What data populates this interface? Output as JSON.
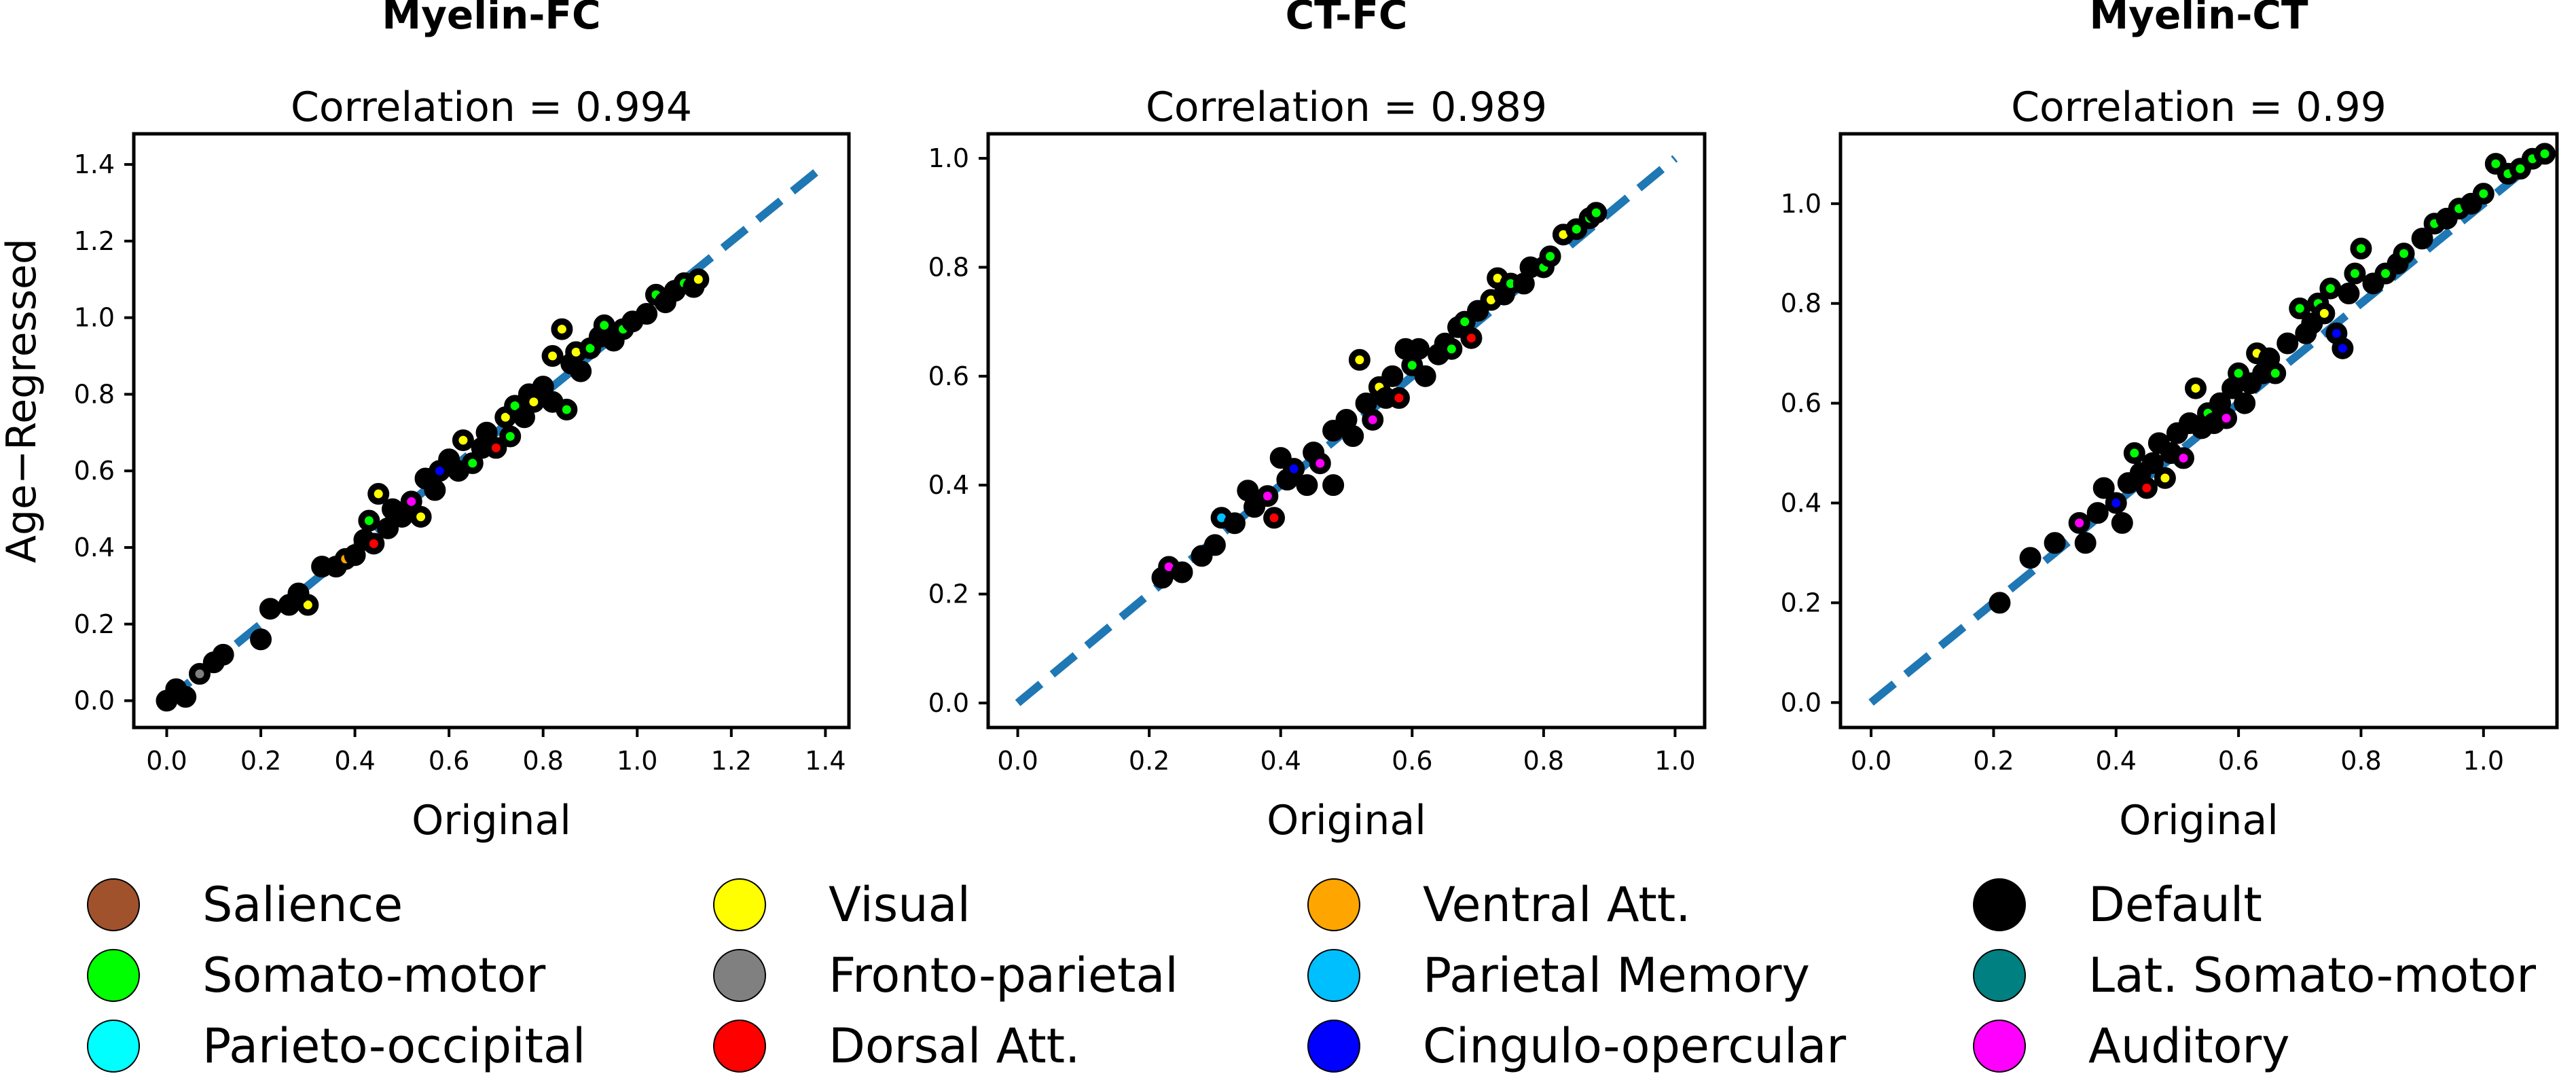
{
  "ylabel_shared": "Age−Regressed",
  "chart_data": [
    {
      "type": "scatter",
      "title": "Myelin-FC",
      "subtitle": "Correlation = 0.994",
      "xlabel": "Original",
      "ylabel": "Age−Regressed",
      "xlim": [
        -0.07,
        1.45
      ],
      "ylim": [
        -0.07,
        1.48
      ],
      "xticks": [
        "0.0",
        "0.2",
        "0.4",
        "0.6",
        "0.8",
        "1.0",
        "1.2",
        "1.4"
      ],
      "yticks": [
        "0.0",
        "0.2",
        "0.4",
        "0.6",
        "0.8",
        "1.0",
        "1.2",
        "1.4"
      ],
      "reference_line": {
        "from": [
          0,
          0
        ],
        "to": [
          1.4,
          1.4
        ],
        "style": "dashed",
        "color": "#1f77b4"
      },
      "points": [
        {
          "x": 0.0,
          "y": 0.0,
          "c": "Default"
        },
        {
          "x": 0.02,
          "y": 0.03,
          "c": "Default"
        },
        {
          "x": 0.04,
          "y": 0.01,
          "c": "Default"
        },
        {
          "x": 0.07,
          "y": 0.07,
          "c": "Fronto-parietal"
        },
        {
          "x": 0.1,
          "y": 0.1,
          "c": "Default"
        },
        {
          "x": 0.12,
          "y": 0.12,
          "c": "Default"
        },
        {
          "x": 0.2,
          "y": 0.16,
          "c": "Default"
        },
        {
          "x": 0.22,
          "y": 0.24,
          "c": "Default"
        },
        {
          "x": 0.26,
          "y": 0.25,
          "c": "Default"
        },
        {
          "x": 0.3,
          "y": 0.25,
          "c": "Visual"
        },
        {
          "x": 0.28,
          "y": 0.28,
          "c": "Default"
        },
        {
          "x": 0.33,
          "y": 0.35,
          "c": "Default"
        },
        {
          "x": 0.36,
          "y": 0.35,
          "c": "Default"
        },
        {
          "x": 0.38,
          "y": 0.37,
          "c": "Ventral Att."
        },
        {
          "x": 0.4,
          "y": 0.38,
          "c": "Default"
        },
        {
          "x": 0.42,
          "y": 0.42,
          "c": "Default"
        },
        {
          "x": 0.44,
          "y": 0.41,
          "c": "Dorsal Att."
        },
        {
          "x": 0.43,
          "y": 0.47,
          "c": "Somato-motor"
        },
        {
          "x": 0.45,
          "y": 0.54,
          "c": "Visual"
        },
        {
          "x": 0.47,
          "y": 0.45,
          "c": "Default"
        },
        {
          "x": 0.48,
          "y": 0.5,
          "c": "Default"
        },
        {
          "x": 0.5,
          "y": 0.48,
          "c": "Default"
        },
        {
          "x": 0.52,
          "y": 0.52,
          "c": "Auditory"
        },
        {
          "x": 0.54,
          "y": 0.48,
          "c": "Visual"
        },
        {
          "x": 0.55,
          "y": 0.58,
          "c": "Default"
        },
        {
          "x": 0.57,
          "y": 0.55,
          "c": "Default"
        },
        {
          "x": 0.58,
          "y": 0.6,
          "c": "Cingulo-opercular"
        },
        {
          "x": 0.6,
          "y": 0.63,
          "c": "Default"
        },
        {
          "x": 0.62,
          "y": 0.6,
          "c": "Default"
        },
        {
          "x": 0.63,
          "y": 0.68,
          "c": "Visual"
        },
        {
          "x": 0.65,
          "y": 0.62,
          "c": "Somato-motor"
        },
        {
          "x": 0.67,
          "y": 0.66,
          "c": "Default"
        },
        {
          "x": 0.68,
          "y": 0.7,
          "c": "Default"
        },
        {
          "x": 0.7,
          "y": 0.66,
          "c": "Dorsal Att."
        },
        {
          "x": 0.72,
          "y": 0.74,
          "c": "Visual"
        },
        {
          "x": 0.73,
          "y": 0.69,
          "c": "Somato-motor"
        },
        {
          "x": 0.74,
          "y": 0.77,
          "c": "Somato-motor"
        },
        {
          "x": 0.76,
          "y": 0.74,
          "c": "Default"
        },
        {
          "x": 0.77,
          "y": 0.8,
          "c": "Default"
        },
        {
          "x": 0.78,
          "y": 0.78,
          "c": "Visual"
        },
        {
          "x": 0.8,
          "y": 0.82,
          "c": "Default"
        },
        {
          "x": 0.82,
          "y": 0.78,
          "c": "Default"
        },
        {
          "x": 0.82,
          "y": 0.9,
          "c": "Visual"
        },
        {
          "x": 0.84,
          "y": 0.97,
          "c": "Visual"
        },
        {
          "x": 0.85,
          "y": 0.76,
          "c": "Somato-motor"
        },
        {
          "x": 0.86,
          "y": 0.88,
          "c": "Default"
        },
        {
          "x": 0.87,
          "y": 0.91,
          "c": "Visual"
        },
        {
          "x": 0.88,
          "y": 0.86,
          "c": "Default"
        },
        {
          "x": 0.9,
          "y": 0.92,
          "c": "Somato-motor"
        },
        {
          "x": 0.92,
          "y": 0.95,
          "c": "Default"
        },
        {
          "x": 0.93,
          "y": 0.98,
          "c": "Somato-motor"
        },
        {
          "x": 0.95,
          "y": 0.94,
          "c": "Default"
        },
        {
          "x": 0.97,
          "y": 0.97,
          "c": "Somato-motor"
        },
        {
          "x": 0.99,
          "y": 0.99,
          "c": "Default"
        },
        {
          "x": 1.02,
          "y": 1.01,
          "c": "Default"
        },
        {
          "x": 1.04,
          "y": 1.06,
          "c": "Somato-motor"
        },
        {
          "x": 1.06,
          "y": 1.04,
          "c": "Default"
        },
        {
          "x": 1.08,
          "y": 1.07,
          "c": "Default"
        },
        {
          "x": 1.1,
          "y": 1.09,
          "c": "Somato-motor"
        },
        {
          "x": 1.12,
          "y": 1.08,
          "c": "Default"
        },
        {
          "x": 1.13,
          "y": 1.1,
          "c": "Visual"
        }
      ]
    },
    {
      "type": "scatter",
      "title": "CT-FC",
      "subtitle": "Correlation = 0.989",
      "xlabel": "Original",
      "ylabel": "",
      "xlim": [
        -0.045,
        1.045
      ],
      "ylim": [
        -0.045,
        1.045
      ],
      "xticks": [
        "0.0",
        "0.2",
        "0.4",
        "0.6",
        "0.8",
        "1.0"
      ],
      "yticks": [
        "0.0",
        "0.2",
        "0.4",
        "0.6",
        "0.8",
        "1.0"
      ],
      "reference_line": {
        "from": [
          0,
          0
        ],
        "to": [
          1.0,
          1.0
        ],
        "style": "dashed",
        "color": "#1f77b4"
      },
      "points": [
        {
          "x": 0.22,
          "y": 0.23,
          "c": "Default"
        },
        {
          "x": 0.23,
          "y": 0.25,
          "c": "Auditory"
        },
        {
          "x": 0.25,
          "y": 0.24,
          "c": "Default"
        },
        {
          "x": 0.28,
          "y": 0.27,
          "c": "Default"
        },
        {
          "x": 0.3,
          "y": 0.29,
          "c": "Default"
        },
        {
          "x": 0.31,
          "y": 0.34,
          "c": "Parietal Memory"
        },
        {
          "x": 0.33,
          "y": 0.33,
          "c": "Default"
        },
        {
          "x": 0.35,
          "y": 0.39,
          "c": "Default"
        },
        {
          "x": 0.36,
          "y": 0.36,
          "c": "Default"
        },
        {
          "x": 0.38,
          "y": 0.38,
          "c": "Auditory"
        },
        {
          "x": 0.39,
          "y": 0.34,
          "c": "Dorsal Att."
        },
        {
          "x": 0.4,
          "y": 0.45,
          "c": "Default"
        },
        {
          "x": 0.41,
          "y": 0.41,
          "c": "Default"
        },
        {
          "x": 0.42,
          "y": 0.43,
          "c": "Cingulo-opercular"
        },
        {
          "x": 0.44,
          "y": 0.4,
          "c": "Default"
        },
        {
          "x": 0.45,
          "y": 0.46,
          "c": "Default"
        },
        {
          "x": 0.46,
          "y": 0.44,
          "c": "Auditory"
        },
        {
          "x": 0.48,
          "y": 0.5,
          "c": "Default"
        },
        {
          "x": 0.48,
          "y": 0.4,
          "c": "Default"
        },
        {
          "x": 0.5,
          "y": 0.52,
          "c": "Default"
        },
        {
          "x": 0.51,
          "y": 0.49,
          "c": "Default"
        },
        {
          "x": 0.52,
          "y": 0.63,
          "c": "Visual"
        },
        {
          "x": 0.53,
          "y": 0.55,
          "c": "Default"
        },
        {
          "x": 0.54,
          "y": 0.52,
          "c": "Auditory"
        },
        {
          "x": 0.55,
          "y": 0.58,
          "c": "Visual"
        },
        {
          "x": 0.56,
          "y": 0.56,
          "c": "Default"
        },
        {
          "x": 0.57,
          "y": 0.6,
          "c": "Default"
        },
        {
          "x": 0.58,
          "y": 0.56,
          "c": "Dorsal Att."
        },
        {
          "x": 0.59,
          "y": 0.65,
          "c": "Default"
        },
        {
          "x": 0.6,
          "y": 0.62,
          "c": "Somato-motor"
        },
        {
          "x": 0.61,
          "y": 0.65,
          "c": "Default"
        },
        {
          "x": 0.62,
          "y": 0.6,
          "c": "Default"
        },
        {
          "x": 0.64,
          "y": 0.64,
          "c": "Default"
        },
        {
          "x": 0.65,
          "y": 0.66,
          "c": "Default"
        },
        {
          "x": 0.66,
          "y": 0.65,
          "c": "Somato-motor"
        },
        {
          "x": 0.67,
          "y": 0.69,
          "c": "Default"
        },
        {
          "x": 0.68,
          "y": 0.7,
          "c": "Somato-motor"
        },
        {
          "x": 0.69,
          "y": 0.67,
          "c": "Dorsal Att."
        },
        {
          "x": 0.7,
          "y": 0.72,
          "c": "Default"
        },
        {
          "x": 0.72,
          "y": 0.74,
          "c": "Visual"
        },
        {
          "x": 0.73,
          "y": 0.78,
          "c": "Visual"
        },
        {
          "x": 0.74,
          "y": 0.75,
          "c": "Default"
        },
        {
          "x": 0.75,
          "y": 0.77,
          "c": "Somato-motor"
        },
        {
          "x": 0.77,
          "y": 0.77,
          "c": "Default"
        },
        {
          "x": 0.78,
          "y": 0.8,
          "c": "Default"
        },
        {
          "x": 0.8,
          "y": 0.8,
          "c": "Somato-motor"
        },
        {
          "x": 0.81,
          "y": 0.82,
          "c": "Somato-motor"
        },
        {
          "x": 0.83,
          "y": 0.86,
          "c": "Visual"
        },
        {
          "x": 0.85,
          "y": 0.87,
          "c": "Somato-motor"
        },
        {
          "x": 0.87,
          "y": 0.89,
          "c": "Somato-motor"
        },
        {
          "x": 0.88,
          "y": 0.9,
          "c": "Somato-motor"
        }
      ]
    },
    {
      "type": "scatter",
      "title": "Myelin-CT",
      "subtitle": "Correlation = 0.99",
      "xlabel": "Original",
      "ylabel": "",
      "xlim": [
        -0.05,
        1.12
      ],
      "ylim": [
        -0.05,
        1.14
      ],
      "xticks": [
        "0.0",
        "0.2",
        "0.4",
        "0.6",
        "0.8",
        "1.0"
      ],
      "yticks": [
        "0.0",
        "0.2",
        "0.4",
        "0.6",
        "0.8",
        "1.0"
      ],
      "reference_line": {
        "from": [
          0,
          0
        ],
        "to": [
          1.1,
          1.1
        ],
        "style": "dashed",
        "color": "#1f77b4"
      },
      "points": [
        {
          "x": 0.21,
          "y": 0.2,
          "c": "Default"
        },
        {
          "x": 0.26,
          "y": 0.29,
          "c": "Default"
        },
        {
          "x": 0.3,
          "y": 0.32,
          "c": "Default"
        },
        {
          "x": 0.34,
          "y": 0.36,
          "c": "Auditory"
        },
        {
          "x": 0.35,
          "y": 0.32,
          "c": "Default"
        },
        {
          "x": 0.37,
          "y": 0.38,
          "c": "Default"
        },
        {
          "x": 0.38,
          "y": 0.43,
          "c": "Default"
        },
        {
          "x": 0.4,
          "y": 0.4,
          "c": "Cingulo-opercular"
        },
        {
          "x": 0.41,
          "y": 0.36,
          "c": "Default"
        },
        {
          "x": 0.42,
          "y": 0.44,
          "c": "Default"
        },
        {
          "x": 0.43,
          "y": 0.5,
          "c": "Somato-motor"
        },
        {
          "x": 0.44,
          "y": 0.46,
          "c": "Default"
        },
        {
          "x": 0.45,
          "y": 0.43,
          "c": "Dorsal Att."
        },
        {
          "x": 0.46,
          "y": 0.48,
          "c": "Default"
        },
        {
          "x": 0.47,
          "y": 0.52,
          "c": "Default"
        },
        {
          "x": 0.48,
          "y": 0.45,
          "c": "Visual"
        },
        {
          "x": 0.49,
          "y": 0.5,
          "c": "Default"
        },
        {
          "x": 0.5,
          "y": 0.54,
          "c": "Default"
        },
        {
          "x": 0.51,
          "y": 0.49,
          "c": "Auditory"
        },
        {
          "x": 0.52,
          "y": 0.56,
          "c": "Default"
        },
        {
          "x": 0.53,
          "y": 0.63,
          "c": "Visual"
        },
        {
          "x": 0.54,
          "y": 0.55,
          "c": "Default"
        },
        {
          "x": 0.55,
          "y": 0.58,
          "c": "Somato-motor"
        },
        {
          "x": 0.56,
          "y": 0.56,
          "c": "Default"
        },
        {
          "x": 0.57,
          "y": 0.6,
          "c": "Default"
        },
        {
          "x": 0.58,
          "y": 0.57,
          "c": "Auditory"
        },
        {
          "x": 0.59,
          "y": 0.63,
          "c": "Default"
        },
        {
          "x": 0.6,
          "y": 0.66,
          "c": "Somato-motor"
        },
        {
          "x": 0.61,
          "y": 0.6,
          "c": "Default"
        },
        {
          "x": 0.62,
          "y": 0.64,
          "c": "Default"
        },
        {
          "x": 0.63,
          "y": 0.7,
          "c": "Visual"
        },
        {
          "x": 0.64,
          "y": 0.66,
          "c": "Default"
        },
        {
          "x": 0.65,
          "y": 0.69,
          "c": "Default"
        },
        {
          "x": 0.66,
          "y": 0.66,
          "c": "Somato-motor"
        },
        {
          "x": 0.68,
          "y": 0.72,
          "c": "Default"
        },
        {
          "x": 0.7,
          "y": 0.79,
          "c": "Somato-motor"
        },
        {
          "x": 0.71,
          "y": 0.74,
          "c": "Default"
        },
        {
          "x": 0.72,
          "y": 0.76,
          "c": "Default"
        },
        {
          "x": 0.73,
          "y": 0.8,
          "c": "Somato-motor"
        },
        {
          "x": 0.74,
          "y": 0.78,
          "c": "Visual"
        },
        {
          "x": 0.75,
          "y": 0.83,
          "c": "Somato-motor"
        },
        {
          "x": 0.76,
          "y": 0.74,
          "c": "Cingulo-opercular"
        },
        {
          "x": 0.77,
          "y": 0.71,
          "c": "Cingulo-opercular"
        },
        {
          "x": 0.78,
          "y": 0.82,
          "c": "Default"
        },
        {
          "x": 0.79,
          "y": 0.86,
          "c": "Somato-motor"
        },
        {
          "x": 0.8,
          "y": 0.91,
          "c": "Somato-motor"
        },
        {
          "x": 0.82,
          "y": 0.84,
          "c": "Default"
        },
        {
          "x": 0.84,
          "y": 0.86,
          "c": "Somato-motor"
        },
        {
          "x": 0.86,
          "y": 0.88,
          "c": "Default"
        },
        {
          "x": 0.87,
          "y": 0.9,
          "c": "Somato-motor"
        },
        {
          "x": 0.9,
          "y": 0.93,
          "c": "Default"
        },
        {
          "x": 0.92,
          "y": 0.96,
          "c": "Somato-motor"
        },
        {
          "x": 0.94,
          "y": 0.97,
          "c": "Default"
        },
        {
          "x": 0.96,
          "y": 0.99,
          "c": "Somato-motor"
        },
        {
          "x": 0.98,
          "y": 1.0,
          "c": "Default"
        },
        {
          "x": 1.0,
          "y": 1.02,
          "c": "Somato-motor"
        },
        {
          "x": 1.02,
          "y": 1.08,
          "c": "Somato-motor"
        },
        {
          "x": 1.04,
          "y": 1.06,
          "c": "Somato-motor"
        },
        {
          "x": 1.06,
          "y": 1.07,
          "c": "Somato-motor"
        },
        {
          "x": 1.08,
          "y": 1.09,
          "c": "Somato-motor"
        },
        {
          "x": 1.1,
          "y": 1.1,
          "c": "Somato-motor"
        }
      ]
    }
  ],
  "legend": [
    {
      "label": "Salience",
      "color": "#a0522d"
    },
    {
      "label": "Visual",
      "color": "#ffff00"
    },
    {
      "label": "Ventral Att.",
      "color": "#ffa500"
    },
    {
      "label": "Default",
      "color": "#000000"
    },
    {
      "label": "Somato-motor",
      "color": "#00ff00"
    },
    {
      "label": "Fronto-parietal",
      "color": "#808080"
    },
    {
      "label": "Parietal Memory",
      "color": "#00bfff"
    },
    {
      "label": "Lat. Somato-motor",
      "color": "#008080"
    },
    {
      "label": "Parieto-occipital",
      "color": "#00ffff"
    },
    {
      "label": "Dorsal Att.",
      "color": "#ff0000"
    },
    {
      "label": "Cingulo-opercular",
      "color": "#0000ff"
    },
    {
      "label": "Auditory",
      "color": "#ff00ff"
    }
  ],
  "line_color": "#1f77b4"
}
